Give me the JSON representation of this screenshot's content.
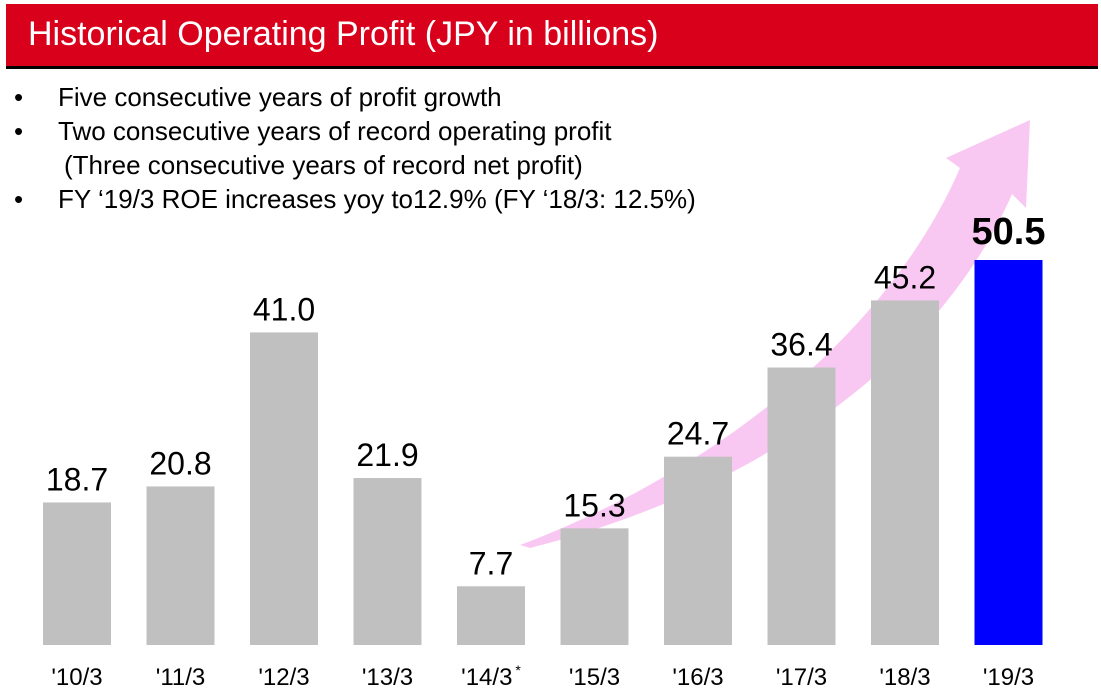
{
  "header": {
    "title": "Historical Operating Profit (JPY in billions)"
  },
  "bullets": [
    {
      "text": "Five consecutive years of profit growth"
    },
    {
      "text": "Two consecutive years of record operating profit",
      "sub": "(Three consecutive years of record net profit)"
    },
    {
      "text": "FY ‘19/3 ROE increases yoy to12.9% (FY ‘18/3: 12.5%)"
    }
  ],
  "bullet_glyph": "•",
  "colors": {
    "header": "#d9001b",
    "bar": "#c0c0c0",
    "highlight": "#0000ff",
    "arrow": "#f9c8f2"
  },
  "chart_data": {
    "type": "bar",
    "categories": [
      "'10/3",
      "'11/3",
      "'12/3",
      "'13/3",
      "'14/3",
      "'15/3",
      "'16/3",
      "'17/3",
      "'18/3",
      "'19/3"
    ],
    "category_notes": [
      "",
      "",
      "",
      "",
      "*",
      "",
      "",
      "",
      "",
      ""
    ],
    "values": [
      18.7,
      20.8,
      41.0,
      21.9,
      7.7,
      15.3,
      24.7,
      36.4,
      45.2,
      50.5
    ],
    "data_labels": [
      "18.7",
      "20.8",
      "41.0",
      "21.9",
      "7.7",
      "15.3",
      "24.7",
      "36.4",
      "45.2",
      "50.5"
    ],
    "highlight_index": 9,
    "ylim": [
      0,
      50.5
    ],
    "grid": false,
    "title": "",
    "xlabel": "",
    "ylabel": ""
  }
}
